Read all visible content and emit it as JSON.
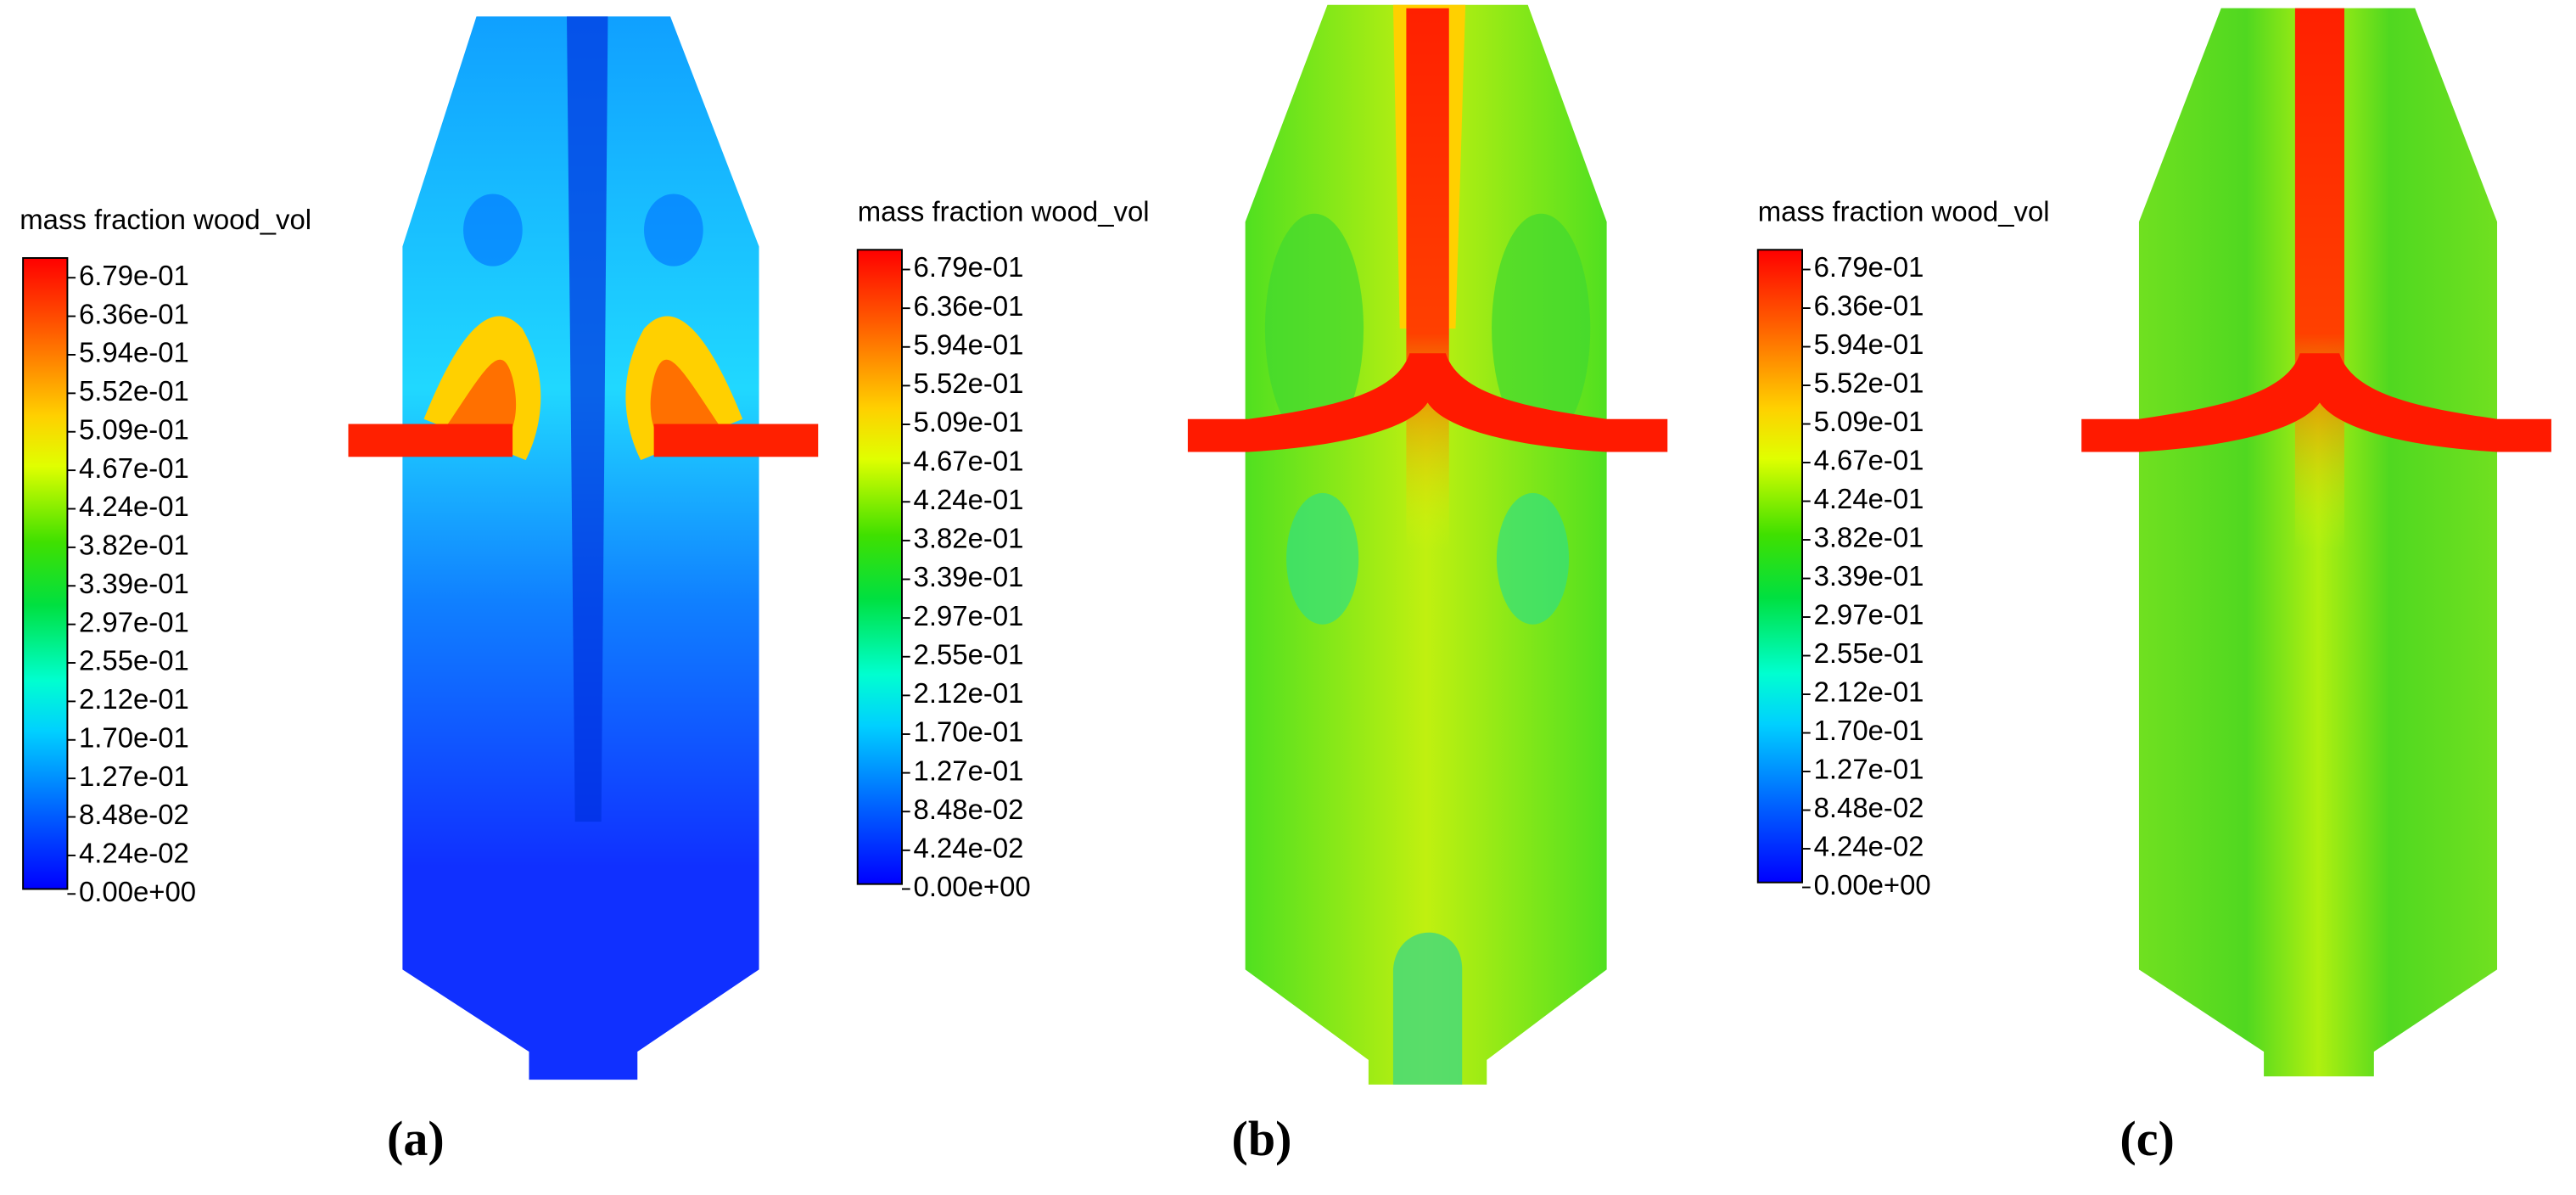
{
  "panels": [
    {
      "legend_title": "mass fraction wood_vol",
      "ticks": [
        "6.79e-01",
        "6.36e-01",
        "5.94e-01",
        "5.52e-01",
        "5.09e-01",
        "4.67e-01",
        "4.24e-01",
        "3.82e-01",
        "3.39e-01",
        "2.97e-01",
        "2.55e-01",
        "2.12e-01",
        "1.70e-01",
        "1.27e-01",
        "8.48e-02",
        "4.24e-02",
        "0.00e+00"
      ],
      "caption": "(a)"
    },
    {
      "legend_title": "mass fraction wood_vol",
      "ticks": [
        "6.79e-01",
        "6.36e-01",
        "5.94e-01",
        "5.52e-01",
        "5.09e-01",
        "4.67e-01",
        "4.24e-01",
        "3.82e-01",
        "3.39e-01",
        "2.97e-01",
        "2.55e-01",
        "2.12e-01",
        "1.70e-01",
        "1.27e-01",
        "8.48e-02",
        "4.24e-02",
        "0.00e+00"
      ],
      "caption": "(b)"
    },
    {
      "legend_title": "mass fraction wood_vol",
      "ticks": [
        "6.79e-01",
        "6.36e-01",
        "5.94e-01",
        "5.52e-01",
        "5.09e-01",
        "4.67e-01",
        "4.24e-01",
        "3.82e-01",
        "3.39e-01",
        "2.97e-01",
        "2.55e-01",
        "2.12e-01",
        "1.70e-01",
        "1.27e-01",
        "8.48e-02",
        "4.24e-02",
        "0.00e+00"
      ],
      "caption": "(c)"
    }
  ]
}
